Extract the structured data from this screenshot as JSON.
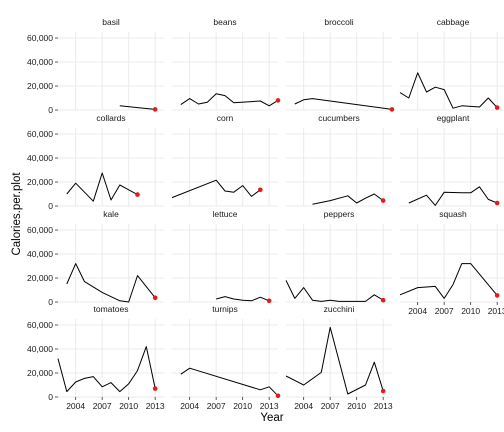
{
  "chart_data": {
    "type": "line",
    "chart_kind": "faceted line chart (small multiples)",
    "xlabel": "Year",
    "ylabel": "Calories.per.plot",
    "xlim": [
      2002,
      2014
    ],
    "ylim": [
      0,
      65000
    ],
    "x_ticks": [
      2004,
      2007,
      2010,
      2013
    ],
    "x_tick_labels": [
      "2004",
      "2007",
      "2010",
      "2013"
    ],
    "y_ticks": [
      0,
      20000,
      40000,
      60000
    ],
    "y_tick_labels": [
      "0",
      "20,000",
      "40,000",
      "60,000"
    ],
    "facet_layout": {
      "columns": 4,
      "rows": 4
    },
    "grid": true,
    "legend": "none",
    "colors": {
      "line": "#000000",
      "last_point": "#e41a1c",
      "panel_background": "#ffffff",
      "grid": "#ebebeb"
    },
    "facets": [
      {
        "name": "basil",
        "points": [
          [
            2009,
            3500
          ],
          [
            2011,
            2000
          ],
          [
            2013,
            500
          ]
        ]
      },
      {
        "name": "beans",
        "points": [
          [
            2003,
            4500
          ],
          [
            2004,
            9500
          ],
          [
            2005,
            5000
          ],
          [
            2006,
            6500
          ],
          [
            2007,
            13500
          ],
          [
            2008,
            12000
          ],
          [
            2009,
            6000
          ],
          [
            2011,
            7000
          ],
          [
            2012,
            7500
          ],
          [
            2013,
            3500
          ],
          [
            2014,
            8000
          ]
        ]
      },
      {
        "name": "broccoli",
        "points": [
          [
            2003,
            5000
          ],
          [
            2004,
            8500
          ],
          [
            2005,
            9500
          ],
          [
            2014,
            500
          ]
        ]
      },
      {
        "name": "cabbage",
        "points": [
          [
            2002,
            14500
          ],
          [
            2003,
            10000
          ],
          [
            2004,
            31000
          ],
          [
            2005,
            15000
          ],
          [
            2006,
            19000
          ],
          [
            2007,
            17000
          ],
          [
            2008,
            1500
          ],
          [
            2009,
            3500
          ],
          [
            2011,
            2500
          ],
          [
            2012,
            10000
          ],
          [
            2013,
            2000
          ]
        ]
      },
      {
        "name": "collards",
        "points": [
          [
            2003,
            10000
          ],
          [
            2004,
            19000
          ],
          [
            2006,
            4000
          ],
          [
            2007,
            27500
          ],
          [
            2008,
            5000
          ],
          [
            2009,
            17500
          ],
          [
            2011,
            9500
          ]
        ]
      },
      {
        "name": "corn",
        "points": [
          [
            2002,
            7000
          ],
          [
            2007,
            21500
          ],
          [
            2008,
            12500
          ],
          [
            2009,
            11500
          ],
          [
            2010,
            17000
          ],
          [
            2011,
            8000
          ],
          [
            2012,
            13500
          ]
        ]
      },
      {
        "name": "cucumbers",
        "points": [
          [
            2005,
            1500
          ],
          [
            2007,
            4500
          ],
          [
            2009,
            8500
          ],
          [
            2010,
            2500
          ],
          [
            2011,
            6500
          ],
          [
            2012,
            10000
          ],
          [
            2013,
            4500
          ]
        ]
      },
      {
        "name": "eggplant",
        "points": [
          [
            2003,
            2500
          ],
          [
            2005,
            9000
          ],
          [
            2006,
            500
          ],
          [
            2007,
            11500
          ],
          [
            2009,
            11000
          ],
          [
            2010,
            11000
          ],
          [
            2011,
            16000
          ],
          [
            2012,
            5500
          ],
          [
            2013,
            2500
          ]
        ]
      },
      {
        "name": "kale",
        "points": [
          [
            2003,
            15000
          ],
          [
            2004,
            32000
          ],
          [
            2005,
            17000
          ],
          [
            2007,
            8000
          ],
          [
            2009,
            1000
          ],
          [
            2010,
            0
          ],
          [
            2011,
            22000
          ],
          [
            2013,
            3500
          ]
        ]
      },
      {
        "name": "lettuce",
        "points": [
          [
            2007,
            2500
          ],
          [
            2008,
            4500
          ],
          [
            2009,
            2500
          ],
          [
            2010,
            1500
          ],
          [
            2011,
            1000
          ],
          [
            2012,
            4000
          ],
          [
            2013,
            1000
          ]
        ]
      },
      {
        "name": "peppers",
        "points": [
          [
            2002,
            18000
          ],
          [
            2003,
            3000
          ],
          [
            2004,
            12000
          ],
          [
            2005,
            1500
          ],
          [
            2006,
            500
          ],
          [
            2007,
            1500
          ],
          [
            2008,
            500
          ],
          [
            2011,
            500
          ],
          [
            2012,
            6000
          ],
          [
            2013,
            1500
          ]
        ]
      },
      {
        "name": "squash",
        "points": [
          [
            2002,
            6000
          ],
          [
            2004,
            12000
          ],
          [
            2006,
            13000
          ],
          [
            2007,
            3000
          ],
          [
            2008,
            14500
          ],
          [
            2009,
            32000
          ],
          [
            2010,
            32000
          ],
          [
            2013,
            5500
          ]
        ]
      },
      {
        "name": "tomatoes",
        "points": [
          [
            2002,
            32000
          ],
          [
            2003,
            4500
          ],
          [
            2004,
            12500
          ],
          [
            2005,
            15500
          ],
          [
            2006,
            17000
          ],
          [
            2007,
            8500
          ],
          [
            2008,
            12000
          ],
          [
            2009,
            4500
          ],
          [
            2010,
            11000
          ],
          [
            2011,
            22000
          ],
          [
            2012,
            42000
          ],
          [
            2013,
            7000
          ]
        ]
      },
      {
        "name": "turnips",
        "points": [
          [
            2003,
            19000
          ],
          [
            2004,
            24000
          ],
          [
            2012,
            6000
          ],
          [
            2013,
            8500
          ],
          [
            2014,
            1000
          ]
        ]
      },
      {
        "name": "zucchini",
        "points": [
          [
            2002,
            17500
          ],
          [
            2004,
            10000
          ],
          [
            2006,
            20500
          ],
          [
            2007,
            58000
          ],
          [
            2009,
            2500
          ],
          [
            2011,
            10000
          ],
          [
            2012,
            29000
          ],
          [
            2013,
            5000
          ]
        ]
      }
    ]
  }
}
